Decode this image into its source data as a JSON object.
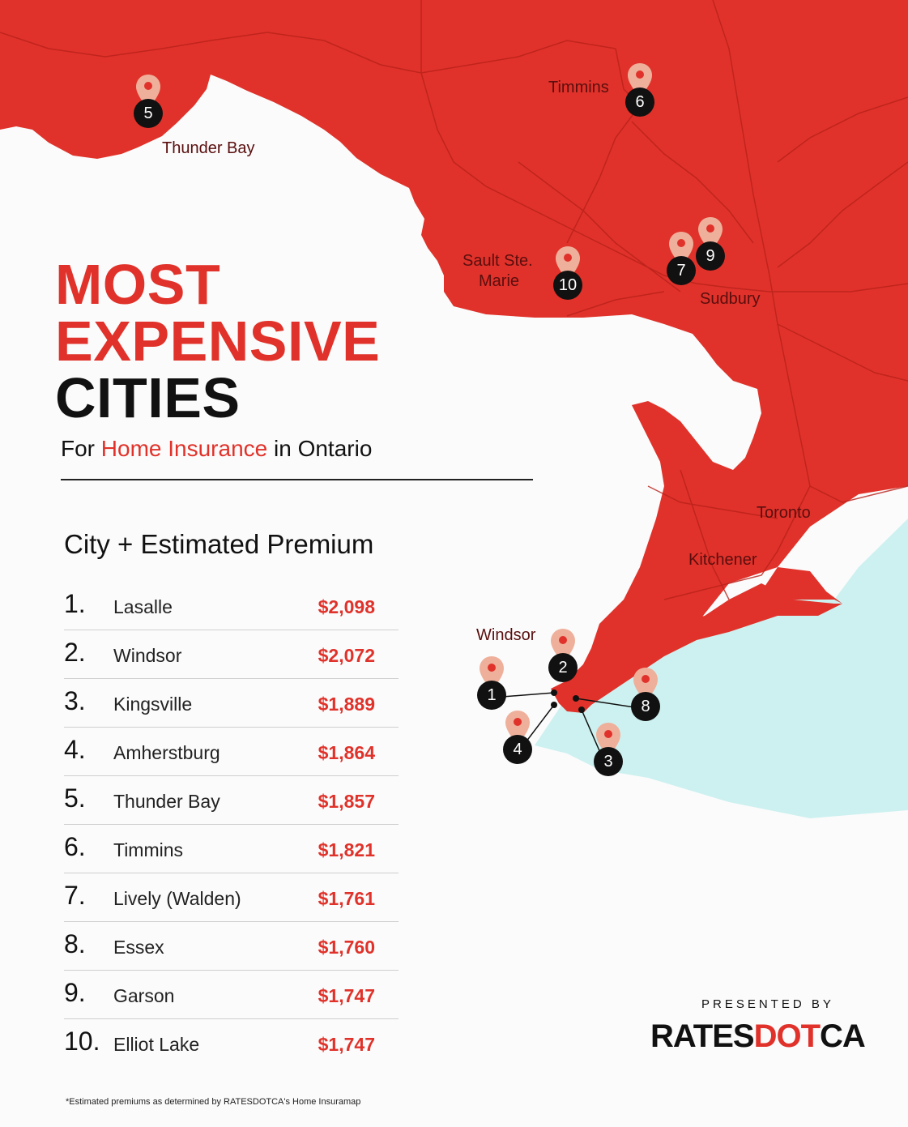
{
  "title": {
    "line1": "MOST",
    "line2": "EXPENSIVE",
    "line3": "CITIES"
  },
  "subtitle": {
    "prefix": "For ",
    "highlight": "Home Insurance",
    "suffix": " in Ontario"
  },
  "list_heading": "City + Estimated Premium",
  "cities": [
    {
      "rank": "1.",
      "name": "Lasalle",
      "premium": "$2,098"
    },
    {
      "rank": "2.",
      "name": "Windsor",
      "premium": "$2,072"
    },
    {
      "rank": "3.",
      "name": "Kingsville",
      "premium": "$1,889"
    },
    {
      "rank": "4.",
      "name": "Amherstburg",
      "premium": "$1,864"
    },
    {
      "rank": "5.",
      "name": "Thunder Bay",
      "premium": "$1,857"
    },
    {
      "rank": "6.",
      "name": "Timmins",
      "premium": "$1,821"
    },
    {
      "rank": "7.",
      "name": "Lively (Walden)",
      "premium": "$1,761"
    },
    {
      "rank": "8.",
      "name": "Essex",
      "premium": "$1,760"
    },
    {
      "rank": "9.",
      "name": "Garson",
      "premium": "$1,747"
    },
    {
      "rank": "10.",
      "name": "Elliot Lake",
      "premium": "$1,747"
    }
  ],
  "map": {
    "labels": {
      "thunder_bay": "Thunder Bay",
      "timmins": "Timmins",
      "sault_line1": "Sault Ste.",
      "sault_line2": "Marie",
      "sudbury": "Sudbury",
      "toronto": "Toronto",
      "kitchener": "Kitchener",
      "windsor": "Windsor"
    },
    "pins": [
      "1",
      "2",
      "3",
      "4",
      "5",
      "6",
      "7",
      "8",
      "9",
      "10"
    ],
    "colors": {
      "land": "#e0322a",
      "water": "#cdf1f0",
      "pin": "#efb09b",
      "marker": "#111111"
    }
  },
  "presented_by": "PRESENTED BY",
  "brand": {
    "part1": "RATES",
    "part2": "DOT",
    "part3": "CA"
  },
  "footnote": "*Estimated premiums as determined by RATESDOTCA's Home Insuramap"
}
